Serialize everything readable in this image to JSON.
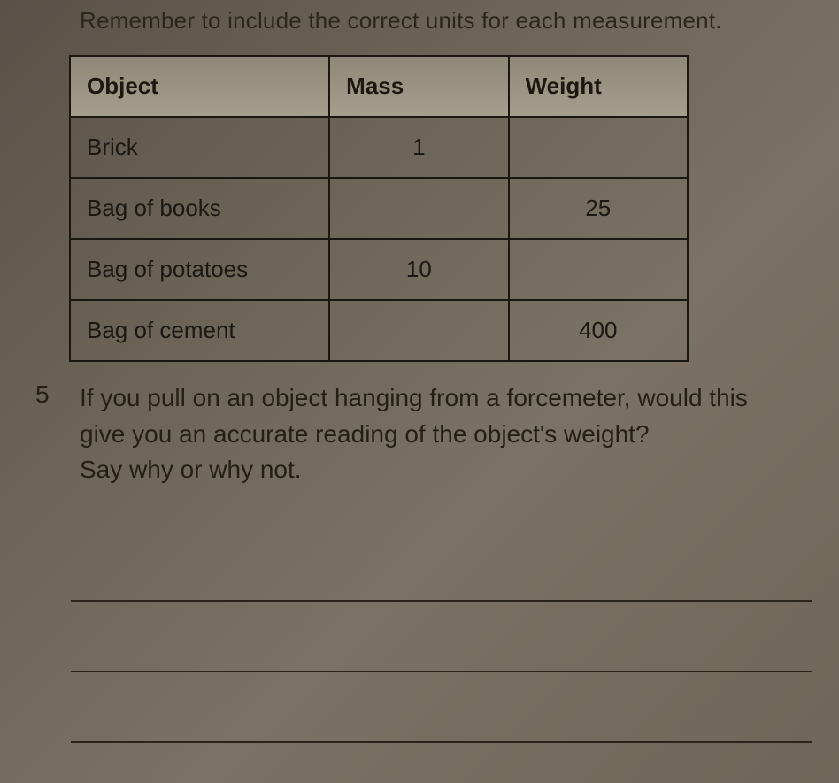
{
  "instruction": "Remember to include the correct units for each measurement.",
  "table": {
    "headers": {
      "object": "Object",
      "mass": "Mass",
      "weight": "Weight"
    },
    "rows": [
      {
        "object": "Brick",
        "mass": "1",
        "weight": ""
      },
      {
        "object": "Bag of books",
        "mass": "",
        "weight": "25"
      },
      {
        "object": "Bag of potatoes",
        "mass": "10",
        "weight": ""
      },
      {
        "object": "Bag of cement",
        "mass": "",
        "weight": "400"
      }
    ],
    "border_color": "#1a1610",
    "header_bg": "#9a9383",
    "fontsize": 26
  },
  "question5": {
    "number": "5",
    "lines": [
      "If you pull on an object hanging from a forcemeter, would this",
      "give you an accurate reading of the object's weight?",
      "Say why or why not."
    ]
  },
  "answer_line_count": 3
}
